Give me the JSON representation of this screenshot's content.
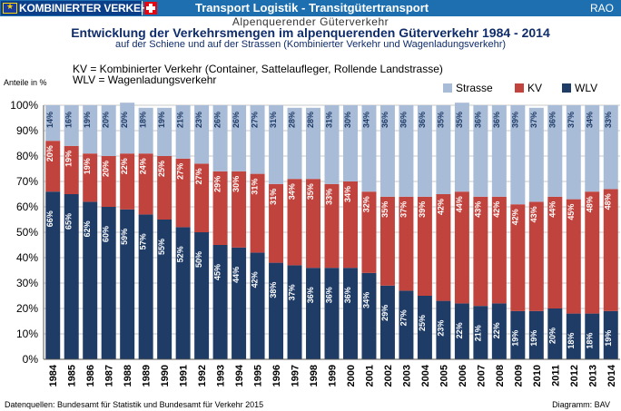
{
  "header": {
    "logo_text": "KOMBINIERTER VERKEHR",
    "app_title": "Transport Logistik - Transitgütertransport",
    "right_label": "RAO"
  },
  "subheading": "Alpenquerender Güterverkehr",
  "notes": {
    "kv": "KV = Kombinierter Verkehr (Container, Sattelaufleger, Rollende Landstrasse)",
    "wlv": "WLV = Wagenladungsverkehr"
  },
  "footer": {
    "source": "Datenquellen: Bundesamt für Statistik und Bundesamt für Verkehr 2015",
    "credit": "Diagramm: BAV"
  },
  "colors": {
    "wlv": "#1f3c67",
    "kv": "#c1433d",
    "strasse": "#a8bbd7",
    "grid": "#c9c9c9"
  },
  "chart_data": {
    "type": "bar",
    "stacked": true,
    "title": "Entwicklung der Verkehrsmengen im alpenquerenden Güterverkehr 1984 - 2014",
    "subtitle": "auf der Schiene und auf der Strassen (Kombinierter Verkehr und Wagenladungsverkehr)",
    "ylabel": "Anteile in %",
    "ylim": [
      0,
      100
    ],
    "yticks": [
      "0%",
      "10%",
      "20%",
      "30%",
      "40%",
      "50%",
      "60%",
      "70%",
      "80%",
      "90%",
      "100%"
    ],
    "grid": true,
    "legend_position": "top-right",
    "categories": [
      "1984",
      "1985",
      "1986",
      "1987",
      "1988",
      "1989",
      "1990",
      "1991",
      "1992",
      "1993",
      "1994",
      "1995",
      "1996",
      "1997",
      "1998",
      "1999",
      "2000",
      "2001",
      "2002",
      "2003",
      "2004",
      "2005",
      "2006",
      "2007",
      "2008",
      "2009",
      "2010",
      "2011",
      "2012",
      "2013",
      "2014"
    ],
    "series": [
      {
        "name": "WLV",
        "values": [
          66,
          65,
          62,
          60,
          59,
          57,
          55,
          52,
          50,
          45,
          44,
          42,
          38,
          37,
          36,
          36,
          36,
          34,
          29,
          27,
          25,
          23,
          22,
          21,
          22,
          19,
          19,
          20,
          18,
          18,
          19
        ]
      },
      {
        "name": "KV",
        "values": [
          20,
          19,
          19,
          20,
          22,
          24,
          25,
          27,
          27,
          29,
          30,
          31,
          31,
          34,
          35,
          33,
          34,
          32,
          35,
          37,
          39,
          42,
          44,
          43,
          42,
          42,
          43,
          44,
          45,
          48,
          48
        ]
      },
      {
        "name": "Strasse",
        "values": [
          14,
          16,
          19,
          20,
          20,
          18,
          19,
          21,
          23,
          26,
          26,
          27,
          31,
          28,
          28,
          31,
          30,
          34,
          36,
          36,
          36,
          35,
          35,
          36,
          36,
          39,
          37,
          36,
          37,
          34,
          33
        ]
      }
    ],
    "legend": [
      "Strasse",
      "KV",
      "WLV"
    ]
  }
}
